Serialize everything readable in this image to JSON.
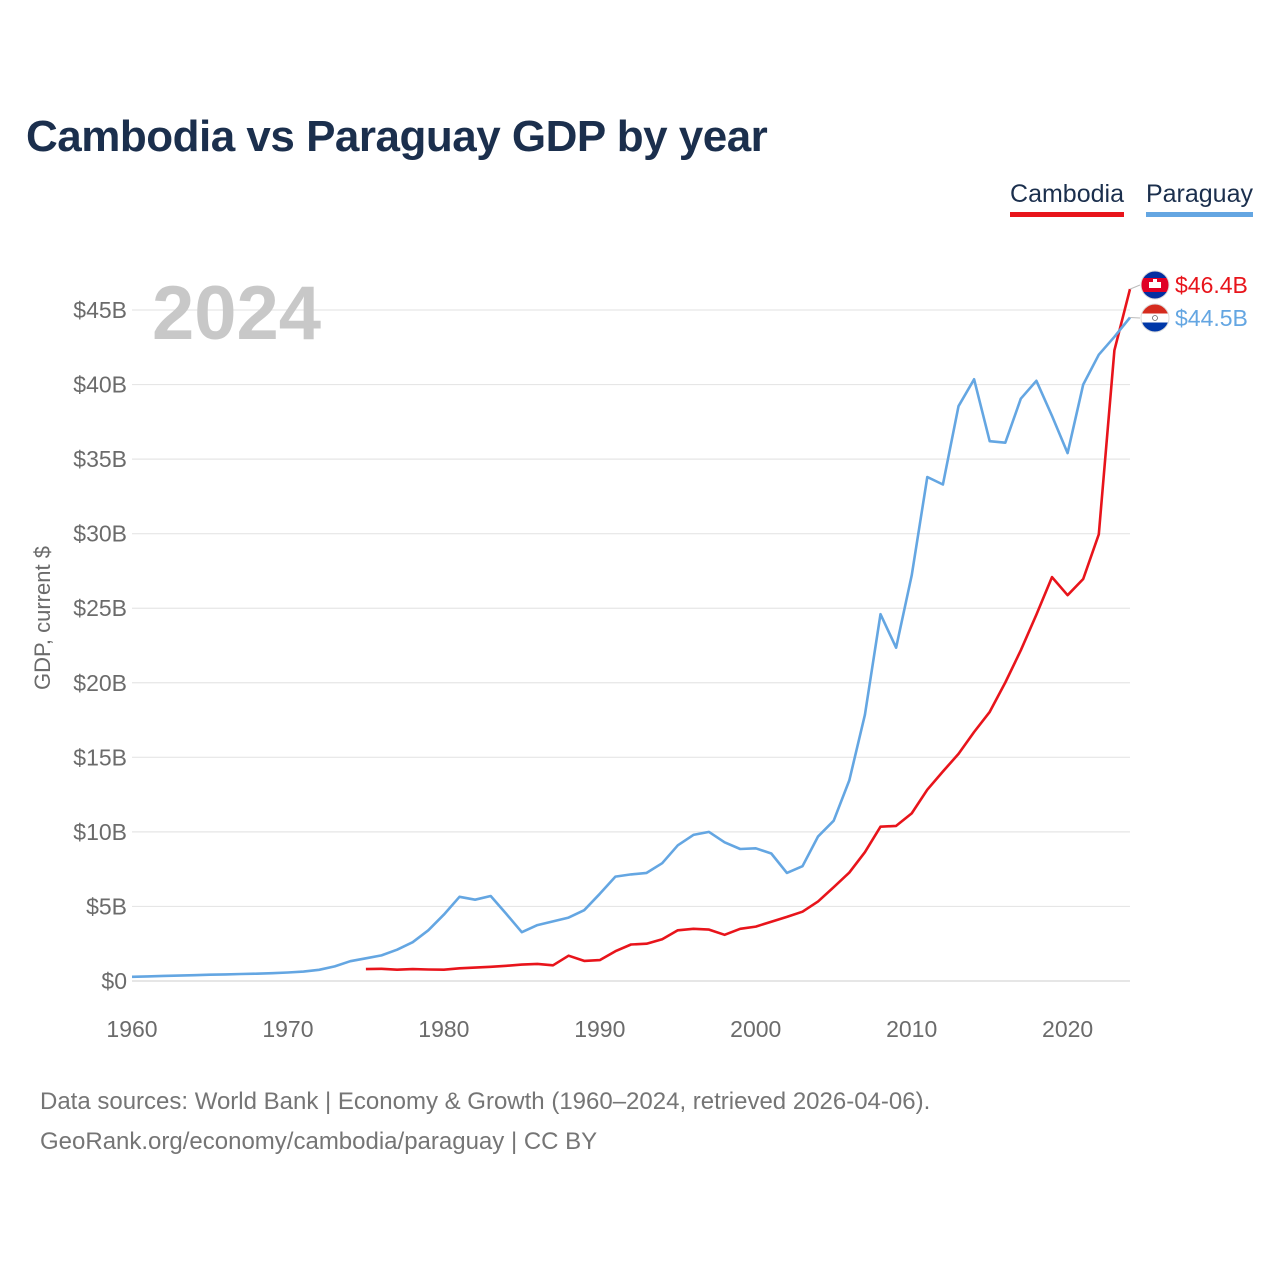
{
  "header": {
    "title": "Cambodia vs Paraguay GDP by year"
  },
  "legend": {
    "cambodia_label": "Cambodia",
    "paraguay_label": "Paraguay"
  },
  "footer": {
    "sources": "Data sources: World Bank | Economy & Growth (1960–2024, retrieved 2026-04-06).",
    "credit": "GeoRank.org/economy/cambodia/paraguay | CC BY"
  },
  "colors": {
    "cambodia": "#e8141b",
    "paraguay": "#64a6e2",
    "title": "#1b2f4d",
    "grid": "#e6e6e6",
    "axis_text": "#6b6b6b",
    "year_watermark": "#c8c8c8"
  },
  "chart_data": {
    "type": "line",
    "title": "Cambodia vs Paraguay GDP by year",
    "xlabel": "",
    "ylabel": "GDP, current $",
    "year_label": "2024",
    "xlim": [
      1960,
      2024
    ],
    "ylim": [
      0,
      47
    ],
    "x_ticks": [
      1960,
      1970,
      1980,
      1990,
      2000,
      2010,
      2020
    ],
    "y_ticks": [
      0,
      5,
      10,
      15,
      20,
      25,
      30,
      35,
      40,
      45
    ],
    "y_tick_labels": [
      "$0",
      "$5B",
      "$10B",
      "$15B",
      "$20B",
      "$25B",
      "$30B",
      "$35B",
      "$40B",
      "$45B"
    ],
    "grid": true,
    "legend_position": "top-right",
    "series": [
      {
        "name": "Cambodia",
        "color": "#e8141b",
        "end_label": "$46.4B",
        "flag": "cambodia-flag",
        "x": [
          1975,
          1976,
          1977,
          1978,
          1979,
          1980,
          1981,
          1982,
          1983,
          1984,
          1985,
          1986,
          1987,
          1988,
          1989,
          1990,
          1991,
          1992,
          1993,
          1994,
          1995,
          1996,
          1997,
          1998,
          1999,
          2000,
          2001,
          2002,
          2003,
          2004,
          2005,
          2006,
          2007,
          2008,
          2009,
          2010,
          2011,
          2012,
          2013,
          2014,
          2015,
          2016,
          2017,
          2018,
          2019,
          2020,
          2021,
          2022,
          2023,
          2024
        ],
        "values": [
          0.8,
          0.82,
          0.76,
          0.8,
          0.77,
          0.76,
          0.85,
          0.9,
          0.95,
          1.02,
          1.1,
          1.15,
          1.05,
          1.7,
          1.35,
          1.4,
          2.0,
          2.45,
          2.5,
          2.8,
          3.4,
          3.5,
          3.45,
          3.1,
          3.5,
          3.65,
          3.98,
          4.3,
          4.65,
          5.34,
          6.29,
          7.27,
          8.64,
          10.35,
          10.4,
          11.24,
          12.83,
          14.05,
          15.23,
          16.7,
          18.05,
          20.02,
          22.18,
          24.57,
          27.09,
          25.87,
          26.96,
          29.96,
          42.3,
          46.4
        ]
      },
      {
        "name": "Paraguay",
        "color": "#64a6e2",
        "end_label": "$44.5B",
        "flag": "paraguay-flag",
        "x": [
          1960,
          1961,
          1962,
          1963,
          1964,
          1965,
          1966,
          1967,
          1968,
          1969,
          1970,
          1971,
          1972,
          1973,
          1974,
          1975,
          1976,
          1977,
          1978,
          1979,
          1980,
          1981,
          1982,
          1983,
          1984,
          1985,
          1986,
          1987,
          1988,
          1989,
          1990,
          1991,
          1992,
          1993,
          1994,
          1995,
          1996,
          1997,
          1998,
          1999,
          2000,
          2001,
          2002,
          2003,
          2004,
          2005,
          2006,
          2007,
          2008,
          2009,
          2010,
          2011,
          2012,
          2013,
          2014,
          2015,
          2016,
          2017,
          2018,
          2019,
          2020,
          2021,
          2022,
          2023,
          2024
        ],
        "values": [
          0.28,
          0.31,
          0.34,
          0.36,
          0.39,
          0.42,
          0.44,
          0.47,
          0.49,
          0.52,
          0.57,
          0.63,
          0.75,
          0.98,
          1.33,
          1.52,
          1.72,
          2.1,
          2.6,
          3.4,
          4.45,
          5.65,
          5.45,
          5.7,
          4.5,
          3.27,
          3.75,
          4.0,
          4.25,
          4.75,
          5.85,
          7.0,
          7.15,
          7.25,
          7.9,
          9.1,
          9.8,
          10.0,
          9.3,
          8.85,
          8.9,
          8.55,
          7.25,
          7.7,
          9.7,
          10.75,
          13.45,
          17.85,
          24.6,
          22.35,
          27.2,
          33.8,
          33.3,
          38.55,
          40.35,
          36.2,
          36.1,
          39.05,
          40.25,
          37.9,
          35.4,
          40.0,
          42.0,
          43.2,
          44.5
        ]
      }
    ]
  }
}
